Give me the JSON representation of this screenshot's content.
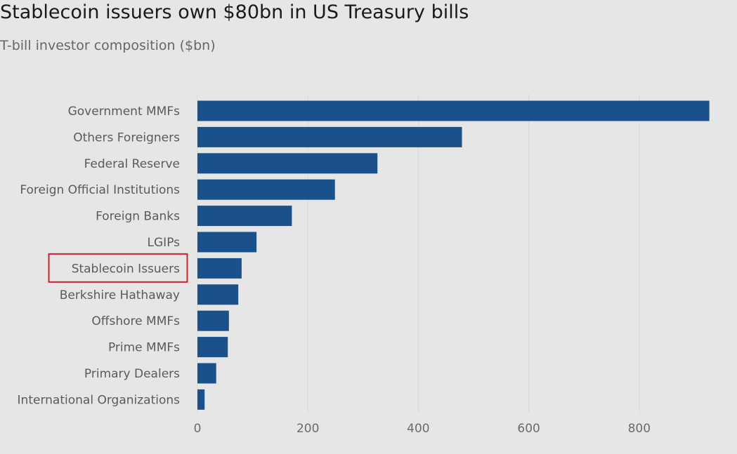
{
  "title": "Stablecoin issuers own $80bn in US Treasury bills",
  "subtitle": "T-bill investor composition ($bn)",
  "colors": {
    "bar": "#1a508b",
    "highlight_box": "#d2232a",
    "gridline": "#d9d9d9",
    "background": "#e6e6e6"
  },
  "chart_data": {
    "type": "bar",
    "orientation": "horizontal",
    "title": "Stablecoin issuers own $80bn in US Treasury bills",
    "subtitle": "T-bill investor composition ($bn)",
    "xlabel": "",
    "ylabel": "",
    "xlim": [
      0,
      930
    ],
    "x_ticks": [
      0,
      200,
      400,
      600,
      800
    ],
    "grid": true,
    "categories": [
      "Government MMFs",
      "Others Foreigners",
      "Federal Reserve",
      "Foreign Official Institutions",
      "Foreign Banks",
      "LGIPs",
      "Stablecoin Issuers",
      "Berkshire Hathaway",
      "Offshore MMFs",
      "Prime MMFs",
      "Primary Dealers",
      "International Organizations"
    ],
    "values": [
      927,
      479,
      326,
      249,
      171,
      107,
      80,
      74,
      57,
      55,
      34,
      13
    ],
    "highlighted_category": "Stablecoin Issuers"
  }
}
